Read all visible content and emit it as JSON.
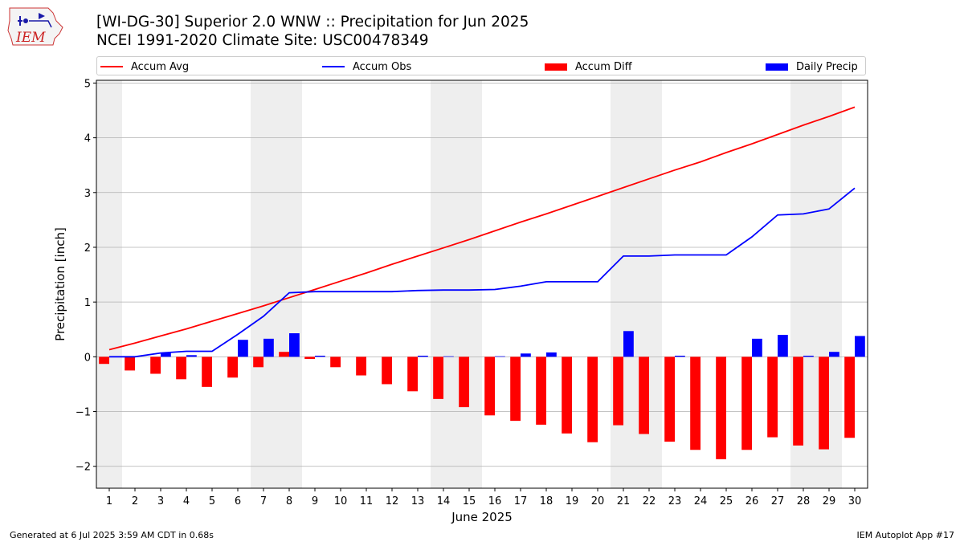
{
  "title_line1": "[WI-DG-30] Superior 2.0 WNW :: Precipitation for Jun 2025",
  "title_line2": "NCEI 1991-2020 Climate Site: USC00478349",
  "footer_left": "Generated at 6 Jul 2025 3:59 AM CDT in 0.68s",
  "footer_right": "IEM Autoplot App #17",
  "logo_text": "IEM",
  "colors": {
    "avg": "#ff0000",
    "obs": "#0000ff",
    "diff": "#ff0000",
    "daily": "#0000ff",
    "weekend": "#eeeeee",
    "grid": "#b0b0b0"
  },
  "legend": [
    {
      "label": "Accum Avg",
      "kind": "line",
      "color": "#ff0000"
    },
    {
      "label": "Accum Obs",
      "kind": "line",
      "color": "#0000ff"
    },
    {
      "label": "Accum Diff",
      "kind": "patch",
      "color": "#ff0000"
    },
    {
      "label": "Daily Precip",
      "kind": "patch",
      "color": "#0000ff"
    }
  ],
  "chart_data": {
    "type": "bar",
    "title": "[WI-DG-30] Superior 2.0 WNW :: Precipitation for Jun 2025",
    "subtitle": "NCEI 1991-2020 Climate Site: USC00478349",
    "xlabel": "June 2025",
    "ylabel": "Precipitation [inch]",
    "ylim": [
      -2.4,
      5.05
    ],
    "yticks": [
      -2,
      -1,
      0,
      1,
      2,
      3,
      4,
      5
    ],
    "ytick_labels": [
      "−2",
      "−1",
      "0",
      "1",
      "2",
      "3",
      "4",
      "5"
    ],
    "grid": true,
    "legend_position": "top",
    "x": [
      1,
      2,
      3,
      4,
      5,
      6,
      7,
      8,
      9,
      10,
      11,
      12,
      13,
      14,
      15,
      16,
      17,
      18,
      19,
      20,
      21,
      22,
      23,
      24,
      25,
      26,
      27,
      28,
      29,
      30
    ],
    "weekend_days": [
      1,
      7,
      8,
      14,
      15,
      21,
      22,
      28,
      29
    ],
    "series": [
      {
        "name": "Accum Avg",
        "type": "line",
        "values": [
          0.13,
          0.25,
          0.38,
          0.51,
          0.65,
          0.79,
          0.93,
          1.08,
          1.23,
          1.38,
          1.53,
          1.69,
          1.84,
          1.99,
          2.14,
          2.3,
          2.46,
          2.61,
          2.77,
          2.93,
          3.09,
          3.25,
          3.41,
          3.56,
          3.73,
          3.89,
          4.06,
          4.23,
          4.39,
          4.56
        ]
      },
      {
        "name": "Accum Obs",
        "type": "line",
        "values": [
          0.0,
          0.0,
          0.07,
          0.1,
          0.1,
          0.41,
          0.74,
          1.17,
          1.19,
          1.19,
          1.19,
          1.19,
          1.21,
          1.22,
          1.22,
          1.23,
          1.29,
          1.37,
          1.37,
          1.37,
          1.84,
          1.84,
          1.86,
          1.86,
          1.86,
          2.19,
          2.59,
          2.61,
          2.7,
          3.08
        ]
      },
      {
        "name": "Accum Diff",
        "type": "bar",
        "values": [
          -0.13,
          -0.25,
          -0.31,
          -0.41,
          -0.55,
          -0.38,
          -0.19,
          0.09,
          -0.04,
          -0.19,
          -0.34,
          -0.5,
          -0.63,
          -0.77,
          -0.92,
          -1.07,
          -1.17,
          -1.24,
          -1.4,
          -1.56,
          -1.25,
          -1.41,
          -1.55,
          -1.7,
          -1.87,
          -1.7,
          -1.47,
          -1.62,
          -1.69,
          -1.48
        ]
      },
      {
        "name": "Daily Precip",
        "type": "bar",
        "values": [
          0.0,
          0.0,
          0.07,
          0.03,
          0.0,
          0.31,
          0.33,
          0.43,
          0.02,
          0.0,
          0.0,
          0.0,
          0.02,
          0.01,
          0.0,
          0.01,
          0.06,
          0.08,
          0.0,
          0.0,
          0.47,
          0.0,
          0.02,
          0.0,
          0.0,
          0.33,
          0.4,
          0.02,
          0.09,
          0.38
        ]
      }
    ]
  }
}
